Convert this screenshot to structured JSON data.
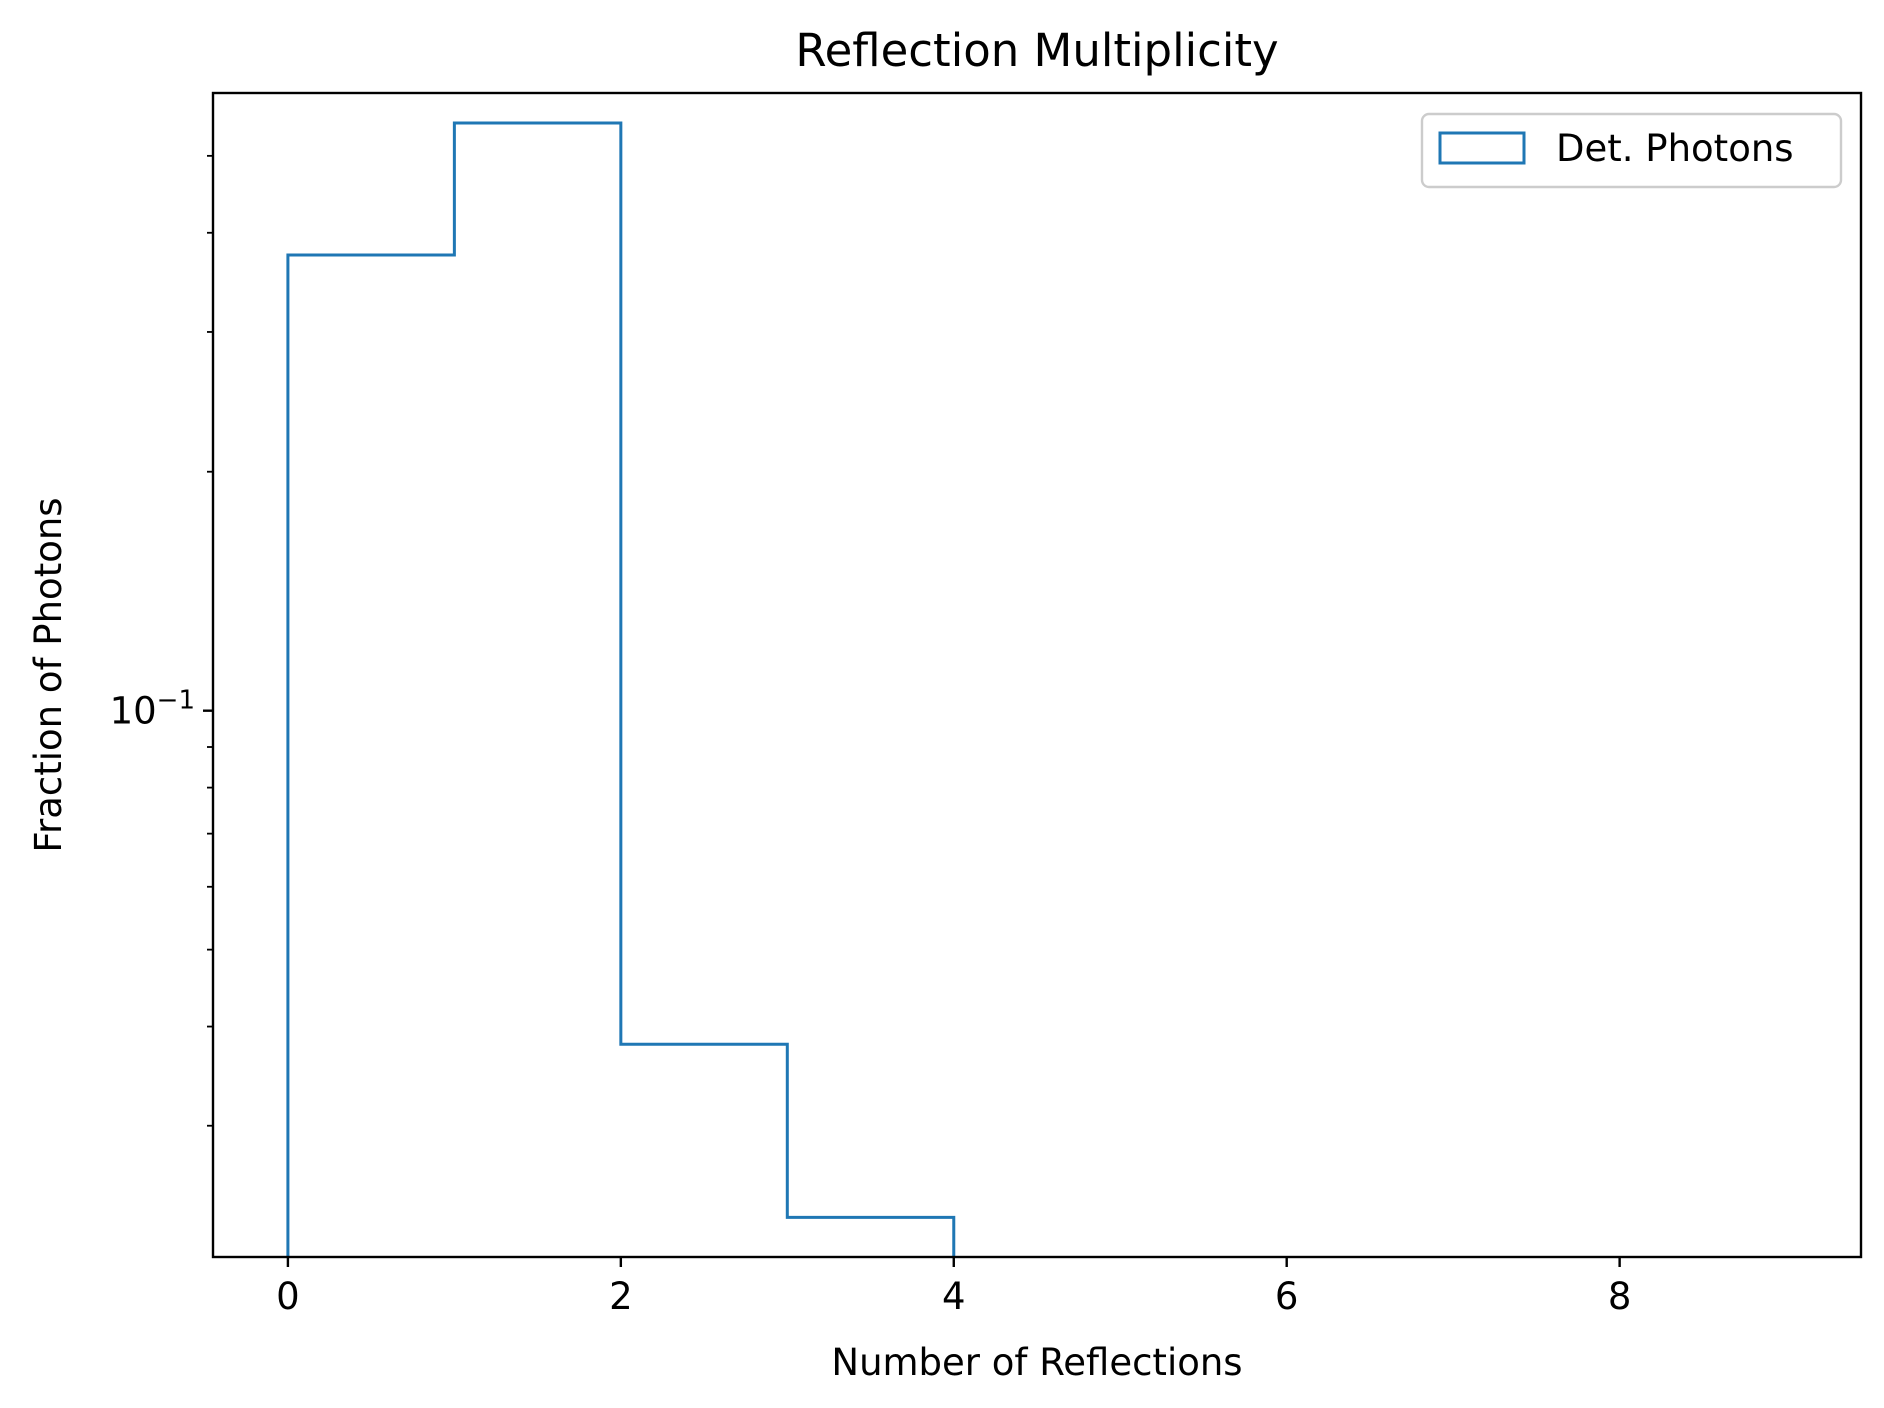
{
  "chart_data": {
    "type": "bar",
    "histtype": "step",
    "title": "Reflection Multiplicity",
    "xlabel": "Number of Reflections",
    "ylabel": "Fraction of Photons",
    "yscale": "log",
    "xlim": [
      -0.45,
      9.45
    ],
    "ylim": [
      0.0205,
      0.6
    ],
    "bin_edges": [
      0,
      1,
      2,
      3,
      4
    ],
    "series": [
      {
        "name": "Det. Photons",
        "values": [
          0.375,
          0.55,
          0.038,
          0.023
        ],
        "color": "#1f77b4"
      }
    ],
    "x_ticks": [
      0,
      2,
      4,
      6,
      8
    ],
    "x_tick_labels": [
      "0",
      "2",
      "4",
      "6",
      "8"
    ],
    "y_major_ticks": [
      {
        "value": 0.1,
        "base": "10",
        "exponent": "−1"
      }
    ],
    "y_minor_ticks": [
      0.03,
      0.04,
      0.05,
      0.06,
      0.07,
      0.08,
      0.09,
      0.2,
      0.3,
      0.4,
      0.5
    ],
    "grid": false,
    "legend_position": "top-right"
  }
}
